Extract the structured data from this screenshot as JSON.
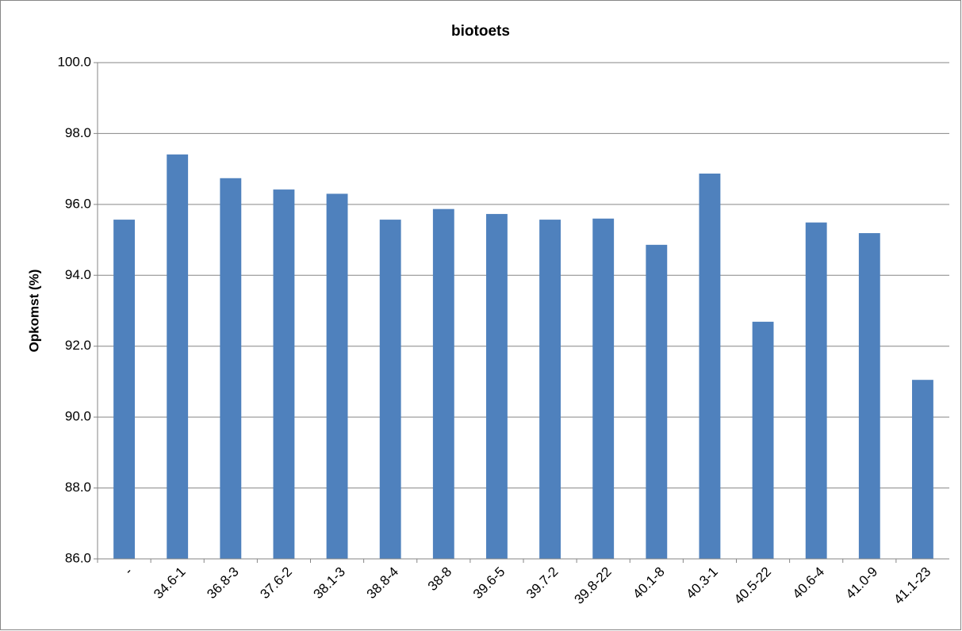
{
  "chart_data": {
    "type": "bar",
    "title": "biotoets",
    "y_label": "Opkomst (%)",
    "categories": [
      "-",
      "34.6-1",
      "36.8-3",
      "37.6-2",
      "38.1-3",
      "38.8-4",
      "38-8",
      "39.6-5",
      "39.7-2",
      "39.8-22",
      "40.1-8",
      "40.3-1",
      "40.5-22",
      "40.6-4",
      "41.0-9",
      "41.1-23"
    ],
    "values": [
      95.57,
      97.41,
      96.74,
      96.42,
      96.3,
      95.57,
      95.87,
      95.73,
      95.57,
      95.6,
      94.86,
      96.87,
      92.69,
      95.49,
      95.19,
      91.05
    ],
    "color": "#4f81bd",
    "ylim": [
      86,
      100
    ],
    "yticks": [
      {
        "value": 86,
        "label": "86.0"
      },
      {
        "value": 88,
        "label": "88.0"
      },
      {
        "value": 90,
        "label": "90.0"
      },
      {
        "value": 92,
        "label": "92.0"
      },
      {
        "value": 94,
        "label": "94.0"
      },
      {
        "value": 96,
        "label": "96.0"
      },
      {
        "value": 98,
        "label": "98.0"
      },
      {
        "value": 100,
        "label": "100.0"
      }
    ],
    "grid": true
  }
}
